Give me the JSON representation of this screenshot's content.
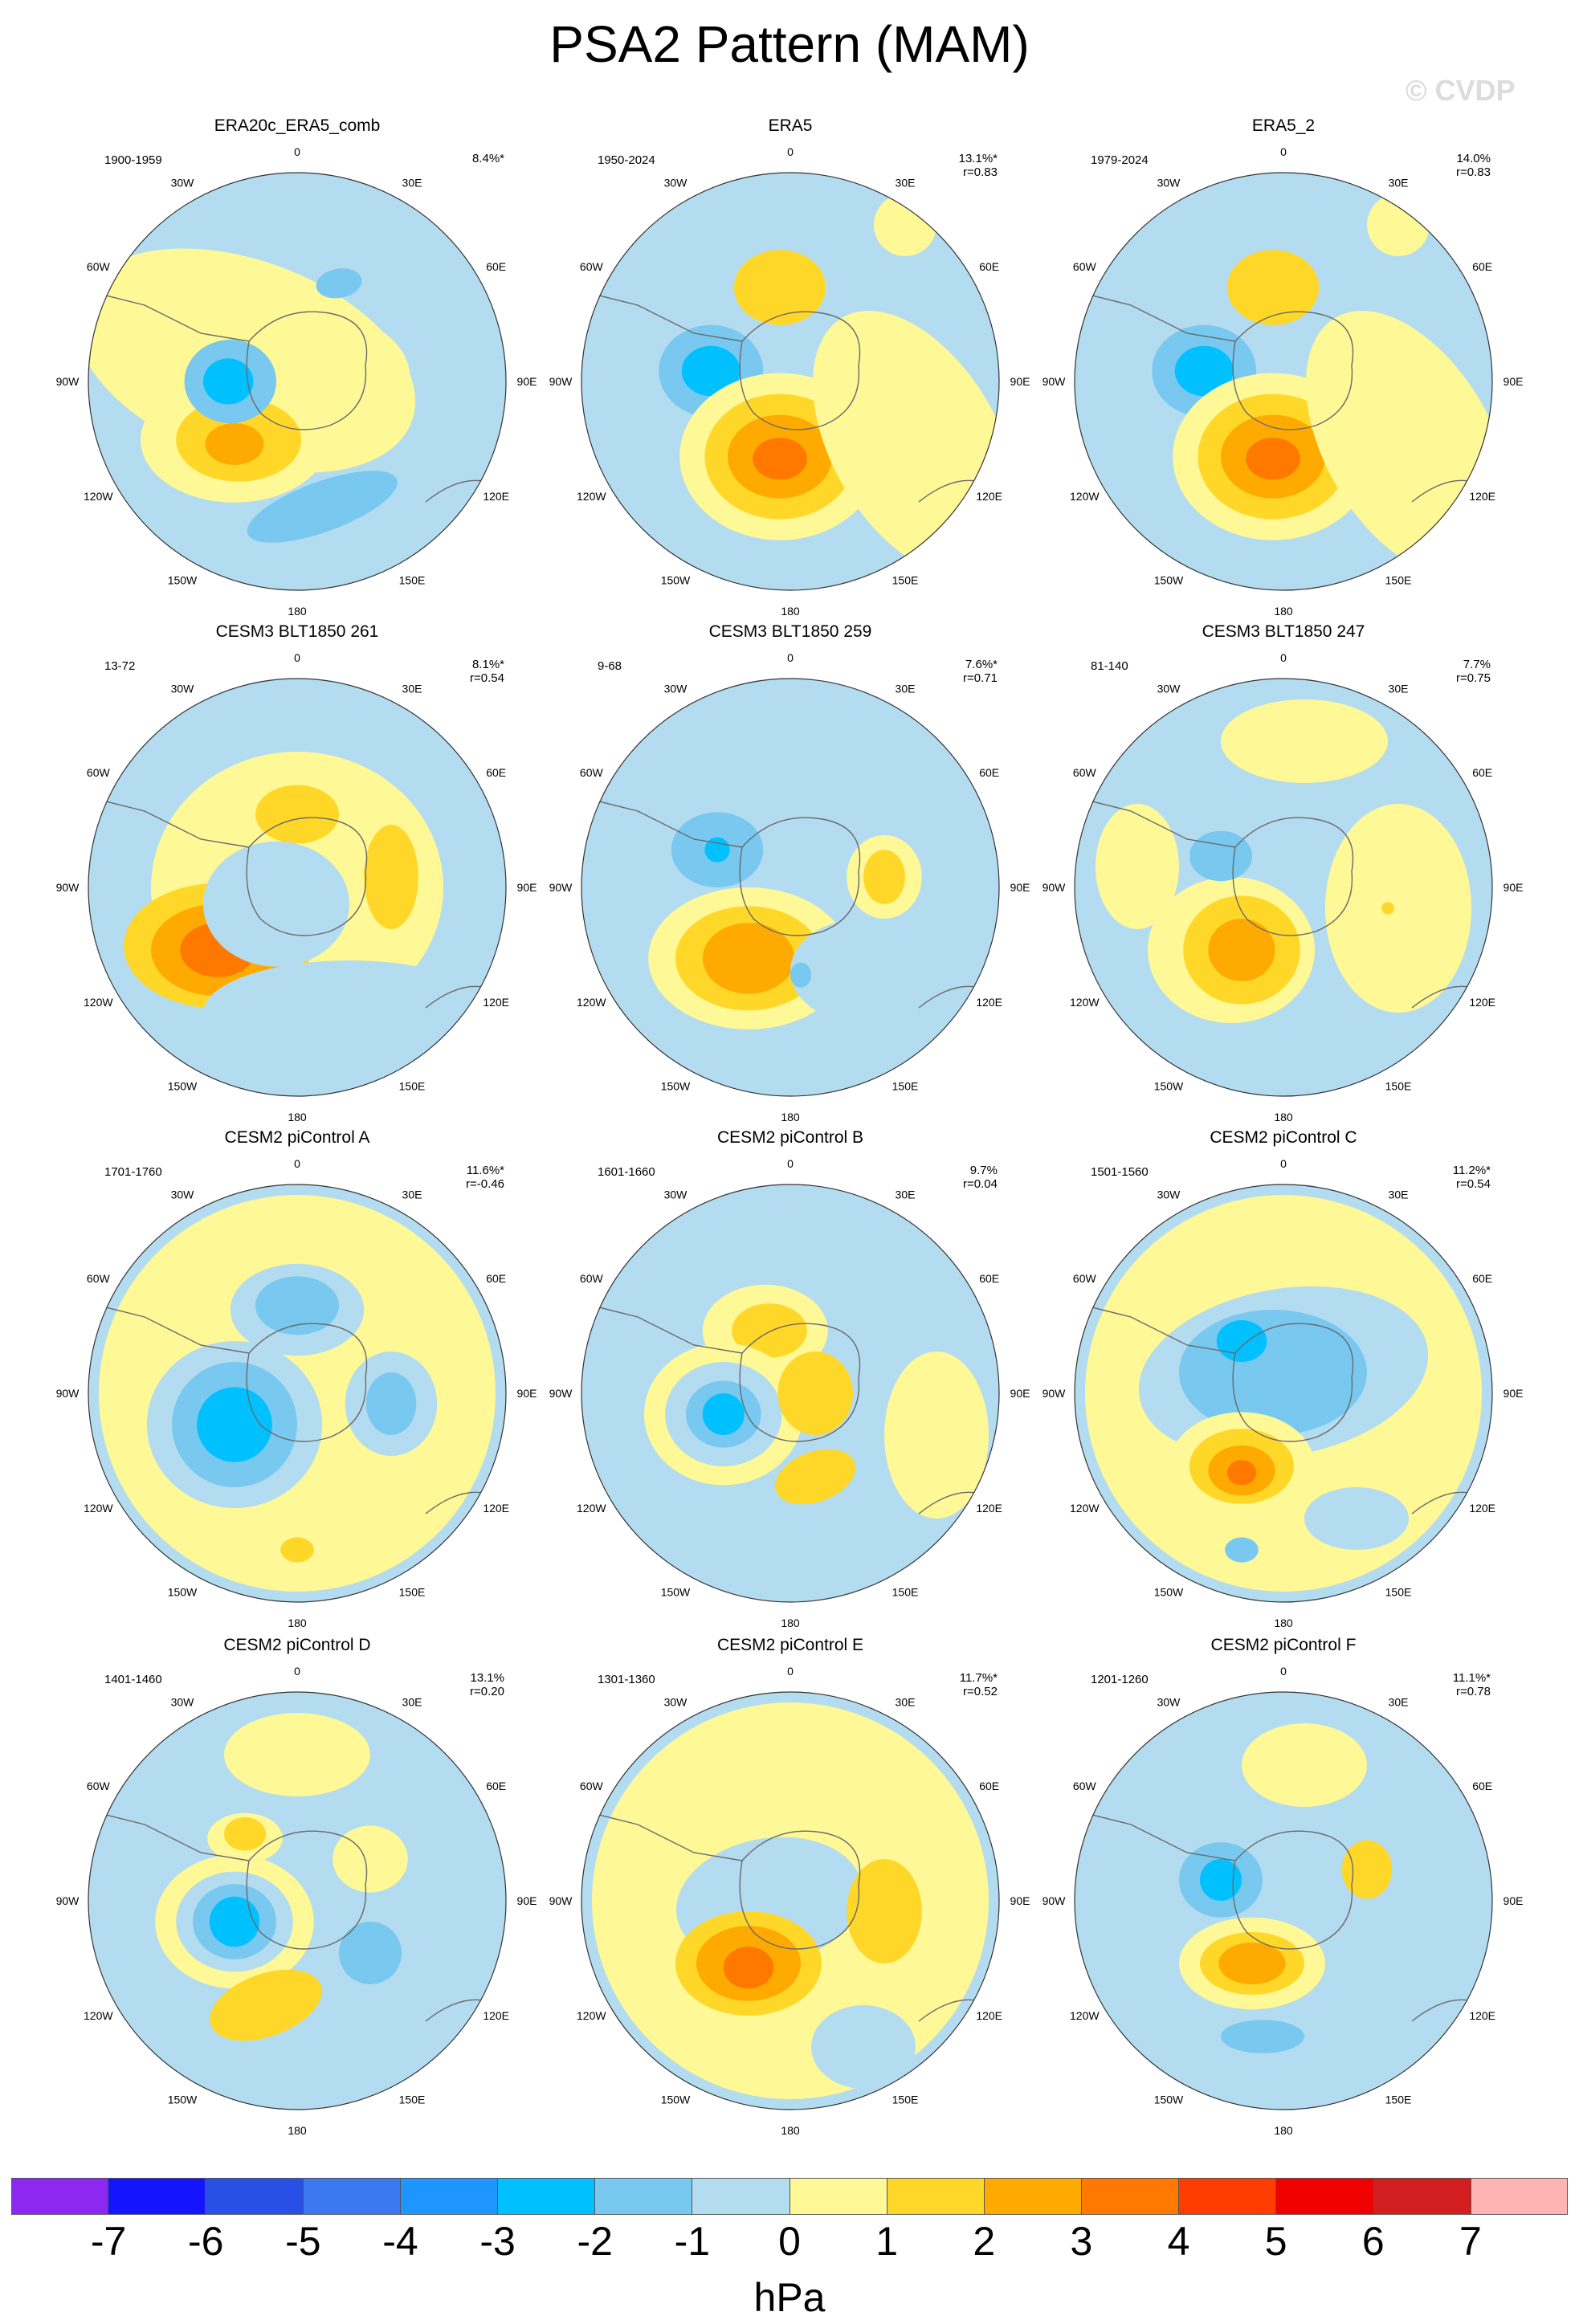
{
  "title": "PSA2 Pattern (MAM)",
  "watermark": "© CVDP",
  "lon_labels": [
    "0",
    "30E",
    "60E",
    "90E",
    "120E",
    "150E",
    "180",
    "150W",
    "120W",
    "90W",
    "60W",
    "30W"
  ],
  "palette": {
    "c-3": "#00c0ff",
    "c-2": "#78c8f0",
    "c-1": "#b4dcf0",
    "c0": "#fff896",
    "c1": "#ffd728",
    "c2": "#ffaa00",
    "c3": "#ff7800"
  },
  "panels": [
    {
      "title": "ERA20c_ERA5_comb",
      "period": "1900-1959",
      "pct": "8.4%*",
      "r": "",
      "blobs": [
        [
          -0.25,
          -0.1,
          0.85,
          0.48,
          20,
          "c0"
        ],
        [
          0.12,
          -0.02,
          0.42,
          0.3,
          0,
          "c0"
        ],
        [
          -0.3,
          0.28,
          0.45,
          0.3,
          0,
          "c0"
        ],
        [
          -0.28,
          0.28,
          0.3,
          0.2,
          0,
          "c1"
        ],
        [
          -0.3,
          0.3,
          0.14,
          0.1,
          0,
          "c2"
        ],
        [
          -0.32,
          0.0,
          0.22,
          0.2,
          0,
          "c-2"
        ],
        [
          -0.33,
          0.0,
          0.12,
          0.11,
          0,
          "c-3"
        ],
        [
          0.12,
          0.6,
          0.38,
          0.12,
          -20,
          "c-2"
        ],
        [
          0.2,
          -0.47,
          0.11,
          0.07,
          -10,
          "c-2"
        ]
      ]
    },
    {
      "title": "ERA5",
      "period": "1950-2024",
      "pct": "13.1%*",
      "r": "r=0.83",
      "blobs": [
        [
          0.0,
          -0.05,
          0.85,
          0.75,
          0,
          "c-1"
        ],
        [
          -0.05,
          -0.45,
          0.22,
          0.18,
          0,
          "c1"
        ],
        [
          -0.38,
          -0.05,
          0.25,
          0.22,
          0,
          "c-2"
        ],
        [
          -0.38,
          -0.05,
          0.14,
          0.12,
          0,
          "c-3"
        ],
        [
          -0.05,
          0.36,
          0.48,
          0.4,
          0,
          "c0"
        ],
        [
          -0.05,
          0.36,
          0.36,
          0.3,
          0,
          "c1"
        ],
        [
          -0.05,
          0.36,
          0.25,
          0.2,
          0,
          "c2"
        ],
        [
          -0.05,
          0.37,
          0.13,
          0.1,
          0,
          "c3"
        ],
        [
          0.35,
          0.45,
          0.08,
          0.13,
          0,
          "c-2"
        ],
        [
          0.6,
          0.3,
          0.4,
          0.7,
          -30,
          "c0"
        ],
        [
          0.55,
          -0.75,
          0.15,
          0.15,
          0,
          "c0"
        ]
      ]
    },
    {
      "title": "ERA5_2",
      "period": "1979-2024",
      "pct": "14.0%",
      "r": "r=0.83",
      "blobs": [
        [
          0.0,
          -0.05,
          0.85,
          0.75,
          0,
          "c-1"
        ],
        [
          -0.05,
          -0.45,
          0.22,
          0.18,
          0,
          "c1"
        ],
        [
          -0.38,
          -0.05,
          0.25,
          0.22,
          0,
          "c-2"
        ],
        [
          -0.38,
          -0.05,
          0.14,
          0.12,
          0,
          "c-3"
        ],
        [
          -0.05,
          0.36,
          0.48,
          0.4,
          0,
          "c0"
        ],
        [
          -0.05,
          0.36,
          0.36,
          0.3,
          0,
          "c1"
        ],
        [
          -0.05,
          0.36,
          0.25,
          0.2,
          0,
          "c2"
        ],
        [
          -0.05,
          0.37,
          0.13,
          0.1,
          0,
          "c3"
        ],
        [
          0.6,
          0.3,
          0.4,
          0.7,
          -30,
          "c0"
        ],
        [
          0.55,
          -0.75,
          0.15,
          0.15,
          0,
          "c0"
        ]
      ]
    },
    {
      "title": "CESM3 BLT1850 261",
      "period": "13-72",
      "pct": "8.1%*",
      "r": "r=0.54",
      "blobs": [
        [
          0.0,
          0.0,
          0.7,
          0.65,
          0,
          "c0"
        ],
        [
          0.0,
          -0.35,
          0.2,
          0.14,
          0,
          "c1"
        ],
        [
          0.45,
          -0.05,
          0.13,
          0.25,
          0,
          "c1"
        ],
        [
          -0.38,
          0.28,
          0.45,
          0.3,
          0,
          "c1"
        ],
        [
          -0.38,
          0.3,
          0.32,
          0.22,
          0,
          "c2"
        ],
        [
          -0.38,
          0.3,
          0.18,
          0.13,
          0,
          "c3"
        ],
        [
          -0.1,
          0.08,
          0.35,
          0.3,
          0,
          "c-1"
        ],
        [
          0.25,
          0.6,
          0.7,
          0.25,
          0,
          "c-1"
        ]
      ]
    },
    {
      "title": "CESM3 BLT1850 259",
      "period": "9-68",
      "pct": "7.6%*",
      "r": "r=0.71",
      "blobs": [
        [
          0.05,
          -0.05,
          0.75,
          0.45,
          -20,
          "c-1"
        ],
        [
          -0.2,
          0.34,
          0.48,
          0.34,
          0,
          "c0"
        ],
        [
          -0.2,
          0.34,
          0.35,
          0.25,
          0,
          "c1"
        ],
        [
          -0.2,
          0.34,
          0.22,
          0.17,
          0,
          "c2"
        ],
        [
          -0.35,
          -0.18,
          0.22,
          0.18,
          0,
          "c-2"
        ],
        [
          -0.35,
          -0.18,
          0.06,
          0.06,
          0,
          "c-3"
        ],
        [
          0.45,
          -0.05,
          0.18,
          0.2,
          0,
          "c0"
        ],
        [
          0.45,
          -0.05,
          0.1,
          0.13,
          0,
          "c1"
        ],
        [
          0.35,
          0.4,
          0.35,
          0.25,
          0,
          "c-1"
        ],
        [
          0.05,
          0.42,
          0.05,
          0.06,
          0,
          "c-2"
        ]
      ]
    },
    {
      "title": "CESM3 BLT1850 247",
      "period": "81-140",
      "pct": "7.7%",
      "r": "r=0.75",
      "blobs": [
        [
          0.0,
          0.0,
          0.85,
          0.8,
          0,
          "c-1"
        ],
        [
          -0.25,
          0.3,
          0.4,
          0.35,
          0,
          "c0"
        ],
        [
          -0.2,
          0.3,
          0.28,
          0.26,
          0,
          "c1"
        ],
        [
          -0.2,
          0.3,
          0.16,
          0.15,
          0,
          "c2"
        ],
        [
          -0.3,
          -0.15,
          0.15,
          0.12,
          0,
          "c-2"
        ],
        [
          0.55,
          0.1,
          0.35,
          0.5,
          0,
          "c0"
        ],
        [
          0.5,
          0.1,
          0.03,
          0.03,
          0,
          "c1"
        ],
        [
          -0.7,
          -0.1,
          0.2,
          0.3,
          0,
          "c0"
        ],
        [
          0.1,
          -0.7,
          0.4,
          0.2,
          0,
          "c0"
        ]
      ]
    },
    {
      "title": "CESM2 piControl A",
      "period": "1701-1760",
      "pct": "11.6%*",
      "r": "r=-0.46",
      "blobs": [
        [
          0.0,
          0.0,
          0.95,
          0.95,
          0,
          "c0"
        ],
        [
          0.0,
          -0.4,
          0.32,
          0.22,
          0,
          "c-1"
        ],
        [
          0.0,
          -0.42,
          0.2,
          0.14,
          0,
          "c-2"
        ],
        [
          -0.3,
          0.15,
          0.42,
          0.4,
          0,
          "c-1"
        ],
        [
          -0.3,
          0.15,
          0.3,
          0.3,
          0,
          "c-2"
        ],
        [
          -0.3,
          0.15,
          0.18,
          0.18,
          0,
          "c-3"
        ],
        [
          0.45,
          0.05,
          0.22,
          0.25,
          0,
          "c-1"
        ],
        [
          0.45,
          0.05,
          0.12,
          0.15,
          0,
          "c-2"
        ],
        [
          0.0,
          0.75,
          0.08,
          0.06,
          0,
          "c1"
        ]
      ]
    },
    {
      "title": "CESM2 piControl B",
      "period": "1601-1660",
      "pct": "9.7%",
      "r": "r=0.04",
      "blobs": [
        [
          0.0,
          0.0,
          0.95,
          0.95,
          0,
          "c-1"
        ],
        [
          -0.12,
          -0.3,
          0.3,
          0.22,
          0,
          "c0"
        ],
        [
          -0.1,
          -0.3,
          0.18,
          0.13,
          0,
          "c1"
        ],
        [
          -0.32,
          0.1,
          0.38,
          0.34,
          0,
          "c0"
        ],
        [
          -0.32,
          0.1,
          0.28,
          0.25,
          0,
          "c-1"
        ],
        [
          -0.32,
          0.1,
          0.18,
          0.16,
          0,
          "c-2"
        ],
        [
          -0.32,
          0.1,
          0.1,
          0.1,
          0,
          "c-3"
        ],
        [
          0.12,
          0.4,
          0.2,
          0.12,
          -20,
          "c1"
        ],
        [
          0.12,
          0.0,
          0.18,
          0.2,
          0,
          "c1"
        ],
        [
          0.35,
          -0.35,
          0.1,
          0.12,
          0,
          "c-1"
        ],
        [
          0.7,
          0.2,
          0.25,
          0.4,
          0,
          "c0"
        ]
      ]
    },
    {
      "title": "CESM2 piControl C",
      "period": "1501-1560",
      "pct": "11.2%*",
      "r": "r=0.54",
      "blobs": [
        [
          0.0,
          0.0,
          0.95,
          0.95,
          0,
          "c0"
        ],
        [
          0.0,
          -0.1,
          0.7,
          0.4,
          -10,
          "c-1"
        ],
        [
          -0.05,
          -0.1,
          0.45,
          0.3,
          0,
          "c-2"
        ],
        [
          -0.2,
          -0.25,
          0.12,
          0.1,
          0,
          "c-3"
        ],
        [
          -0.2,
          0.35,
          0.35,
          0.26,
          0,
          "c0"
        ],
        [
          -0.2,
          0.35,
          0.25,
          0.18,
          0,
          "c1"
        ],
        [
          -0.2,
          0.37,
          0.16,
          0.12,
          0,
          "c2"
        ],
        [
          -0.2,
          0.38,
          0.07,
          0.06,
          0,
          "c3"
        ],
        [
          -0.2,
          0.75,
          0.08,
          0.06,
          0,
          "c-2"
        ],
        [
          0.35,
          0.6,
          0.25,
          0.15,
          0,
          "c-1"
        ]
      ]
    },
    {
      "title": "CESM2 piControl D",
      "period": "1401-1460",
      "pct": "13.1%",
      "r": "r=0.20",
      "blobs": [
        [
          0.0,
          0.0,
          0.95,
          0.95,
          0,
          "c-1"
        ],
        [
          -0.25,
          -0.3,
          0.18,
          0.12,
          0,
          "c0"
        ],
        [
          -0.25,
          -0.32,
          0.1,
          0.08,
          0,
          "c1"
        ],
        [
          -0.3,
          0.1,
          0.38,
          0.32,
          0,
          "c0"
        ],
        [
          -0.3,
          0.1,
          0.28,
          0.24,
          0,
          "c-1"
        ],
        [
          -0.3,
          0.1,
          0.2,
          0.18,
          0,
          "c-2"
        ],
        [
          -0.3,
          0.1,
          0.12,
          0.12,
          0,
          "c-3"
        ],
        [
          -0.15,
          0.5,
          0.28,
          0.15,
          -20,
          "c1"
        ],
        [
          0.35,
          -0.2,
          0.18,
          0.16,
          0,
          "c0"
        ],
        [
          0.35,
          0.25,
          0.15,
          0.15,
          0,
          "c-2"
        ],
        [
          0.0,
          -0.7,
          0.35,
          0.2,
          0,
          "c0"
        ]
      ]
    },
    {
      "title": "CESM2 piControl E",
      "period": "1301-1360",
      "pct": "11.7%*",
      "r": "r=0.52",
      "blobs": [
        [
          0.0,
          0.0,
          0.95,
          0.95,
          0,
          "c0"
        ],
        [
          -0.1,
          0.0,
          0.45,
          0.3,
          -10,
          "c-1"
        ],
        [
          -0.2,
          0.3,
          0.35,
          0.25,
          0,
          "c1"
        ],
        [
          -0.2,
          0.3,
          0.25,
          0.18,
          0,
          "c2"
        ],
        [
          -0.2,
          0.32,
          0.12,
          0.1,
          0,
          "c3"
        ],
        [
          0.45,
          0.05,
          0.18,
          0.25,
          0,
          "c1"
        ],
        [
          0.35,
          0.7,
          0.25,
          0.2,
          0,
          "c-1"
        ]
      ]
    },
    {
      "title": "CESM2 piControl F",
      "period": "1201-1260",
      "pct": "11.1%*",
      "r": "r=0.78",
      "blobs": [
        [
          0.0,
          0.0,
          0.95,
          0.95,
          0,
          "c-1"
        ],
        [
          -0.15,
          0.3,
          0.35,
          0.22,
          0,
          "c0"
        ],
        [
          -0.15,
          0.3,
          0.25,
          0.15,
          0,
          "c1"
        ],
        [
          -0.15,
          0.3,
          0.16,
          0.1,
          0,
          "c2"
        ],
        [
          -0.3,
          -0.1,
          0.2,
          0.18,
          0,
          "c-2"
        ],
        [
          -0.3,
          -0.1,
          0.1,
          0.1,
          0,
          "c-3"
        ],
        [
          0.4,
          -0.15,
          0.12,
          0.14,
          0,
          "c1"
        ],
        [
          -0.1,
          0.65,
          0.2,
          0.08,
          0,
          "c-2"
        ],
        [
          0.1,
          -0.65,
          0.3,
          0.2,
          0,
          "c0"
        ]
      ]
    }
  ],
  "colorbar": {
    "colors": [
      "#8c28f0",
      "#1414ff",
      "#2850e6",
      "#3c78f0",
      "#1e96ff",
      "#00c0ff",
      "#78c8f0",
      "#b4dcf0",
      "#fff896",
      "#ffd728",
      "#ffaa00",
      "#ff7800",
      "#ff3c00",
      "#f00000",
      "#d21e1e",
      "#ffb4b4"
    ],
    "labels": [
      "-7",
      "-6",
      "-5",
      "-4",
      "-3",
      "-2",
      "-1",
      "0",
      "1",
      "2",
      "3",
      "4",
      "5",
      "6",
      "7"
    ],
    "units": "hPa"
  }
}
